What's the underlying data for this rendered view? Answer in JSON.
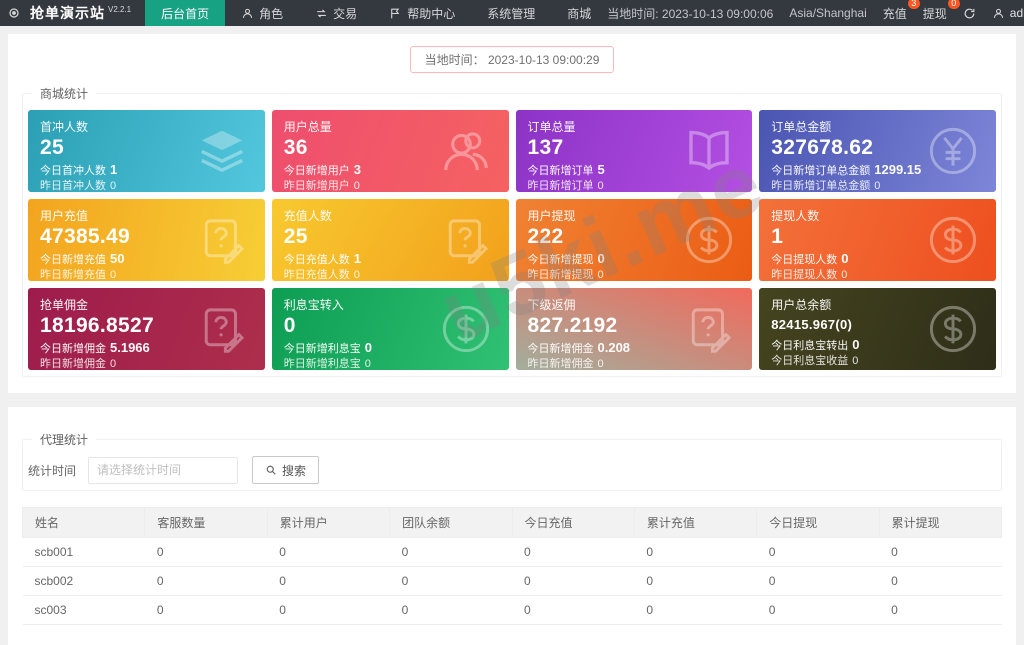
{
  "colors": {
    "topbar_bg": "#34383f",
    "nav_active": "#17a284",
    "badge": "#ff5722",
    "time_pill_border": "#ffb9b9"
  },
  "topbar": {
    "logo": "抢单演示站",
    "version": "V2.2.1",
    "nav": [
      {
        "label": "后台首页",
        "icon": null,
        "active": true
      },
      {
        "label": "角色",
        "icon": "user",
        "active": false
      },
      {
        "label": "交易",
        "icon": "exchange",
        "active": false
      },
      {
        "label": "帮助中心",
        "icon": "flag",
        "active": false
      },
      {
        "label": "系统管理",
        "icon": null,
        "active": false
      },
      {
        "label": "商城",
        "icon": null,
        "active": false
      }
    ],
    "local_time": "当地时间: 2023-10-13 09:00:06",
    "timezone": "Asia/Shanghai",
    "recharge_label": "充值",
    "recharge_badge": "3",
    "withdraw_label": "提现",
    "withdraw_badge": "0",
    "username": "admin"
  },
  "main": {
    "time_label": "当地时间：",
    "time_value": "2023-10-13 09:00:29",
    "section_title": "商城统计",
    "cards": [
      {
        "title": "首冲人数",
        "value": "25",
        "small": false,
        "line2_label": "今日首冲人数",
        "line2_value": "1",
        "line3_label": "昨日首冲人数",
        "line3_value": "0",
        "icon": "layers",
        "angle": "110deg",
        "from": "#2b9fb3",
        "to": "#52c7de"
      },
      {
        "title": "用户总量",
        "value": "36",
        "small": false,
        "line2_label": "今日新增用户",
        "line2_value": "3",
        "line3_label": "昨日新增用户",
        "line3_value": "0",
        "icon": "users",
        "angle": "110deg",
        "from": "#ee4e6e",
        "to": "#f56261"
      },
      {
        "title": "订单总量",
        "value": "137",
        "small": false,
        "line2_label": "今日新增订单",
        "line2_value": "5",
        "line3_label": "昨日新增订单",
        "line3_value": "0",
        "icon": "book",
        "angle": "110deg",
        "from": "#8c33c6",
        "to": "#b44fe3"
      },
      {
        "title": "订单总金额",
        "value": "327678.62",
        "small": false,
        "line2_label": "今日新增订单总金额",
        "line2_value": "1299.15",
        "line3_label": "昨日新增订单总金额",
        "line3_value": "0",
        "icon": "yen",
        "angle": "110deg",
        "from": "#4a55b2",
        "to": "#7d86d8"
      },
      {
        "title": "用户充值",
        "value": "47385.49",
        "small": false,
        "line2_label": "今日新增充值",
        "line2_value": "50",
        "line3_label": "昨日新增充值",
        "line3_value": "0",
        "icon": "doc",
        "angle": "100deg",
        "from": "#f3a41f",
        "to": "#f7ce35"
      },
      {
        "title": "充值人数",
        "value": "25",
        "small": false,
        "line2_label": "今日充值人数",
        "line2_value": "1",
        "line3_label": "昨日充值人数",
        "line3_value": "0",
        "icon": "doc",
        "angle": "120deg",
        "from": "#f8c92f",
        "to": "#f2a01c"
      },
      {
        "title": "用户提现",
        "value": "222",
        "small": false,
        "line2_label": "今日新增提现",
        "line2_value": "0",
        "line3_label": "昨日新增提现",
        "line3_value": "0",
        "icon": "dollar",
        "angle": "110deg",
        "from": "#f08233",
        "to": "#eb5c14"
      },
      {
        "title": "提现人数",
        "value": "1",
        "small": false,
        "line2_label": "今日提现人数",
        "line2_value": "0",
        "line3_label": "昨日提现人数",
        "line3_value": "0",
        "icon": "dollar",
        "angle": "110deg",
        "from": "#f3713a",
        "to": "#ee4f1f"
      },
      {
        "title": "抢单佣金",
        "value": "18196.8527",
        "small": false,
        "line2_label": "今日新增佣金",
        "line2_value": "5.1966",
        "line3_label": "昨日新增佣金",
        "line3_value": "0",
        "icon": "doc",
        "angle": "110deg",
        "from": "#9e1c4c",
        "to": "#ad2e4c"
      },
      {
        "title": "利息宝转入",
        "value": "0",
        "small": false,
        "line2_label": "今日新增利息宝",
        "line2_value": "0",
        "line3_label": "昨日新增利息宝",
        "line3_value": "0",
        "icon": "dollar",
        "angle": "110deg",
        "from": "#0d9d53",
        "to": "#30c174"
      },
      {
        "title": "下级返佣",
        "value": "827.2192",
        "small": false,
        "line2_label": "今日新增佣金",
        "line2_value": "0.208",
        "line3_label": "昨日新增佣金",
        "line3_value": "0",
        "icon": "doc",
        "angle": "200deg",
        "from": "#f16a5c",
        "to": "#a2ae9c"
      },
      {
        "title": "用户总余额",
        "value": "82415.967(0)",
        "small": true,
        "line2_label": "今日利息宝转出",
        "line2_value": "0",
        "line3_label": "今日利息宝收益",
        "line3_value": "0",
        "icon": "dollar",
        "angle": "110deg",
        "from": "#45441f",
        "to": "#2e2e19"
      }
    ]
  },
  "agent": {
    "legend": "代理统计",
    "filter_label": "统计时间",
    "filter_placeholder": "请选择统计时间",
    "search_label": "搜索",
    "table": {
      "headers": [
        "姓名",
        "客服数量",
        "累计用户",
        "团队余额",
        "今日充值",
        "累计充值",
        "今日提现",
        "累计提现"
      ],
      "rows": [
        [
          "scb001",
          "0",
          "0",
          "0",
          "0",
          "0",
          "0",
          "0"
        ],
        [
          "scb002",
          "0",
          "0",
          "0",
          "0",
          "0",
          "0",
          "0"
        ],
        [
          "sc003",
          "0",
          "0",
          "0",
          "0",
          "0",
          "0",
          "0"
        ]
      ]
    }
  },
  "watermark": "u5ki.me"
}
